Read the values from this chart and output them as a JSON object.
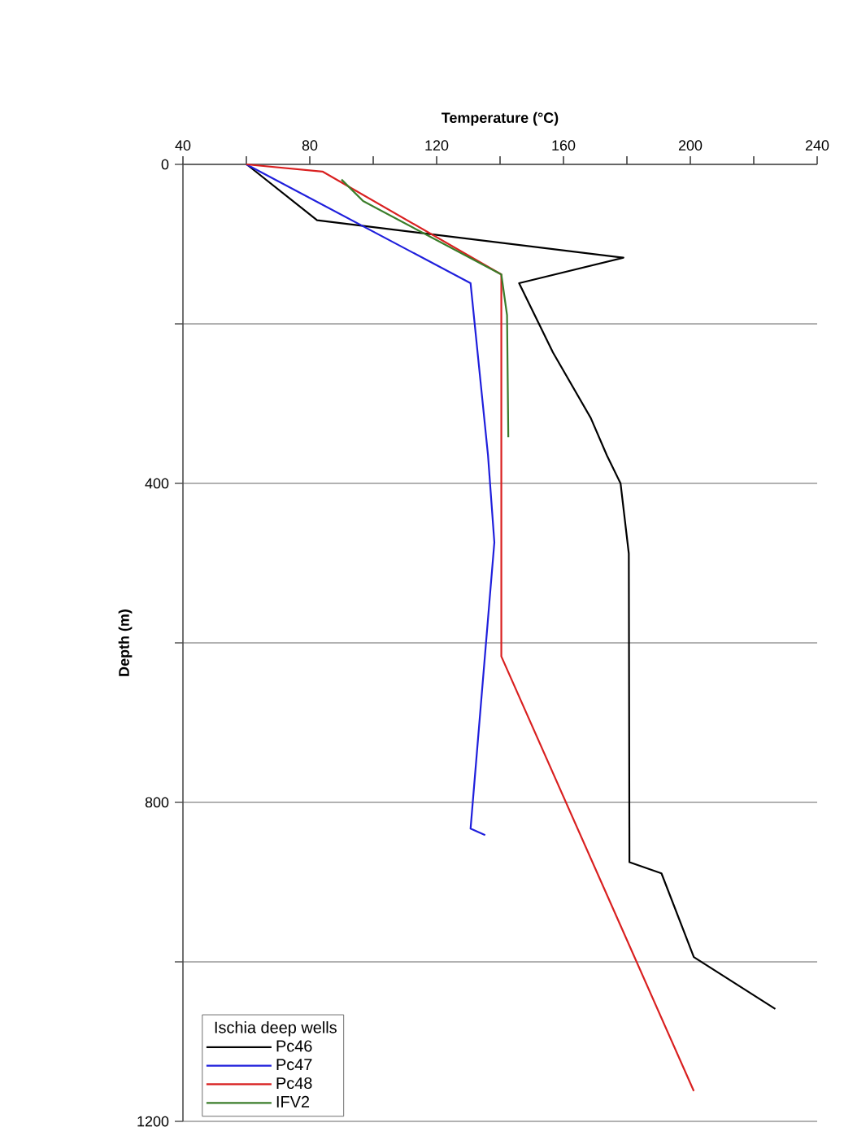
{
  "chart_data": {
    "type": "line",
    "xlabel": "Temperature (°C)",
    "ylabel": "Depth (m)",
    "legend_title": "Ischia deep wells",
    "xlim": [
      40,
      240
    ],
    "xticks": [
      40,
      {
        "value": 60,
        "label": null
      },
      80,
      {
        "value": 100,
        "label": null
      },
      120,
      {
        "value": 140,
        "label": null
      },
      160,
      {
        "value": 180,
        "label": null
      },
      200,
      {
        "value": 220,
        "label": null
      },
      240
    ],
    "ylim": [
      1200,
      0
    ],
    "yticks": [
      0,
      {
        "value": 200,
        "label": null
      },
      400,
      {
        "value": 600,
        "label": null
      },
      800,
      {
        "value": 1000,
        "label": null
      },
      1200
    ],
    "grid": "y",
    "legend": "bottom left",
    "marker": "none",
    "line_style": "solid",
    "series": [
      {
        "name": "Pc46",
        "color": "#000000",
        "x": [
          60.1,
          82.3,
          178.9,
          146,
          156.7,
          168.6,
          173.7,
          178,
          180.6,
          180.8,
          190.9,
          201.1,
          226.8
        ],
        "values": [
          0,
          70,
          117,
          149,
          236,
          318,
          365,
          400,
          488,
          875,
          889,
          994,
          1059
        ]
      },
      {
        "name": "Pc47",
        "color": "#1f1fdc",
        "x": [
          60,
          130.7,
          136.2,
          138.2,
          130.7,
          135.3
        ],
        "values": [
          0,
          149,
          365,
          474,
          833,
          841
        ]
      },
      {
        "name": "Pc48",
        "color": "#d92020",
        "x": [
          60,
          84,
          140.4,
          140.4,
          201.1
        ],
        "values": [
          0,
          9,
          138,
          617,
          1162
        ]
      },
      {
        "name": "IFV2",
        "color": "#3a7d2a",
        "x": [
          90,
          96.8,
          140.4,
          142.2,
          142.6
        ],
        "values": [
          19,
          46,
          138,
          189,
          342
        ]
      }
    ]
  }
}
